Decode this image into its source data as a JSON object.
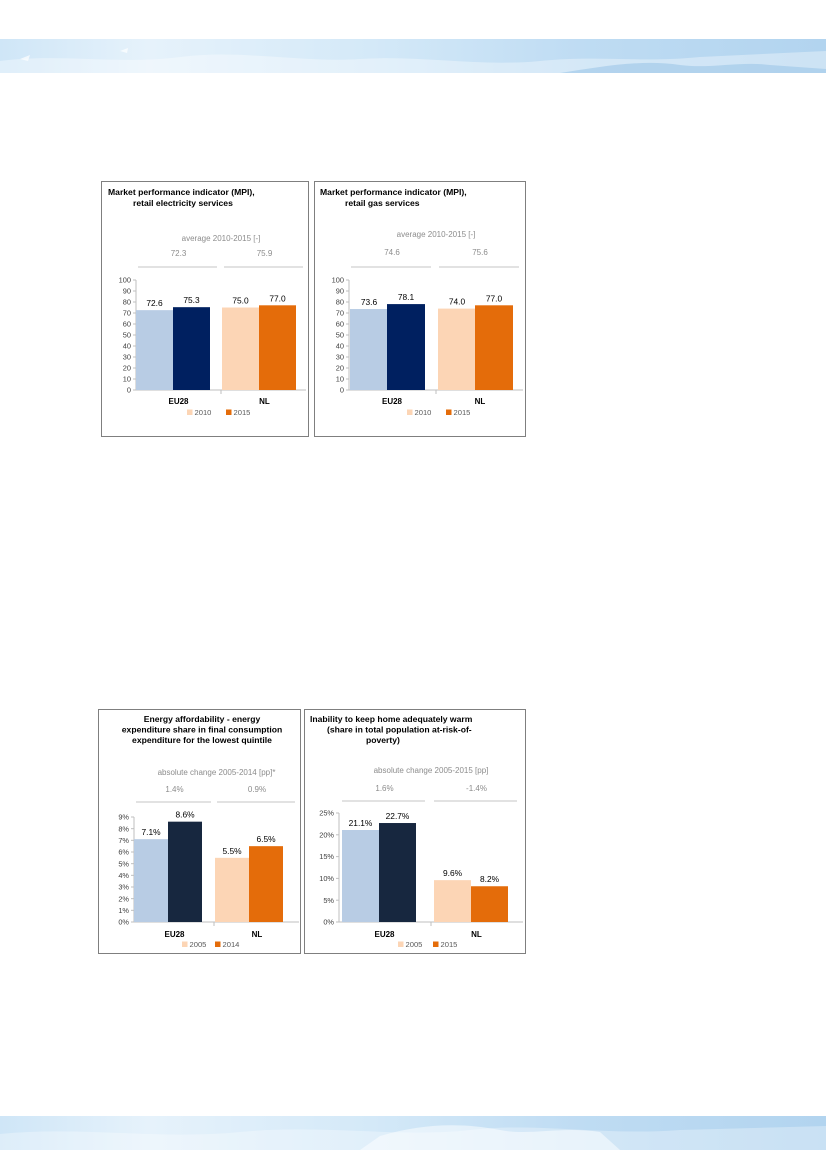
{
  "colors": {
    "eu_old": "#b8cce4",
    "eu_new": "#002060",
    "eu_new_dark": "#17273f",
    "nl_old": "#fcd5b5",
    "nl_new": "#e46c0a",
    "avg_line": "#d9d9d9",
    "panel_border": "#7f7f7f"
  },
  "chart_data": [
    {
      "id": "mpi-electricity",
      "type": "bar",
      "title": [
        "Market performance indicator (MPI),",
        "retail electricity services"
      ],
      "subtitle": "average 2010-2015 [-]",
      "group_values": [
        "72.3",
        "75.9"
      ],
      "categories": [
        "EU28",
        "NL"
      ],
      "series": [
        {
          "name": "2010",
          "values": [
            72.6,
            75.0
          ]
        },
        {
          "name": "2015",
          "values": [
            75.3,
            77.0
          ]
        }
      ],
      "data_labels": [
        [
          "72.6",
          "75.3"
        ],
        [
          "75.0",
          "77.0"
        ]
      ],
      "ylim": [
        0,
        100
      ],
      "yticks": [
        0,
        10,
        20,
        30,
        40,
        50,
        60,
        70,
        80,
        90,
        100
      ],
      "ytick_labels": [
        "0",
        "10",
        "20",
        "30",
        "40",
        "50",
        "60",
        "70",
        "80",
        "90",
        "100"
      ],
      "legend": [
        "2010",
        "2015"
      ],
      "legend_position": "bottom",
      "grid": false
    },
    {
      "id": "mpi-gas",
      "type": "bar",
      "title": [
        "Market performance indicator (MPI),",
        "retail gas services"
      ],
      "subtitle": "average 2010-2015 [-]",
      "group_values": [
        "74.6",
        "75.6"
      ],
      "categories": [
        "EU28",
        "NL"
      ],
      "series": [
        {
          "name": "2010",
          "values": [
            73.6,
            74.0
          ]
        },
        {
          "name": "2015",
          "values": [
            78.1,
            77.0
          ]
        }
      ],
      "data_labels": [
        [
          "73.6",
          "78.1"
        ],
        [
          "74.0",
          "77.0"
        ]
      ],
      "ylim": [
        0,
        100
      ],
      "yticks": [
        0,
        10,
        20,
        30,
        40,
        50,
        60,
        70,
        80,
        90,
        100
      ],
      "ytick_labels": [
        "0",
        "10",
        "20",
        "30",
        "40",
        "50",
        "60",
        "70",
        "80",
        "90",
        "100"
      ],
      "legend": [
        "2010",
        "2015"
      ],
      "legend_position": "bottom",
      "grid": false
    },
    {
      "id": "energy-affordability",
      "type": "bar",
      "title": [
        "Energy affordability - energy",
        "expenditure share in final consumption",
        "expenditure for the lowest quintile"
      ],
      "subtitle": "absolute change 2005-2014 [pp]*",
      "group_values": [
        "1.4%",
        "0.9%"
      ],
      "categories": [
        "EU28",
        "NL"
      ],
      "series": [
        {
          "name": "2005",
          "values": [
            7.1,
            5.5
          ]
        },
        {
          "name": "2014",
          "values": [
            8.6,
            6.5
          ]
        }
      ],
      "data_labels": [
        [
          "7.1%",
          "8.6%"
        ],
        [
          "5.5%",
          "6.5%"
        ]
      ],
      "ylim": [
        0,
        9
      ],
      "yticks": [
        0,
        1,
        2,
        3,
        4,
        5,
        6,
        7,
        8,
        9
      ],
      "ytick_labels": [
        "0%",
        "1%",
        "2%",
        "3%",
        "4%",
        "5%",
        "6%",
        "7%",
        "8%",
        "9%"
      ],
      "legend": [
        "2005",
        "2014"
      ],
      "legend_position": "bottom",
      "grid": false
    },
    {
      "id": "home-warm",
      "type": "bar",
      "title": [
        "Inability to keep home adequately warm",
        "(share in total population at-risk-of-",
        "poverty)"
      ],
      "subtitle": "absolute change 2005-2015 [pp]",
      "group_values": [
        "1.6%",
        "-1.4%"
      ],
      "categories": [
        "EU28",
        "NL"
      ],
      "series": [
        {
          "name": "2005",
          "values": [
            21.1,
            9.6
          ]
        },
        {
          "name": "2015",
          "values": [
            22.7,
            8.2
          ]
        }
      ],
      "data_labels": [
        [
          "21.1%",
          "22.7%"
        ],
        [
          "9.6%",
          "8.2%"
        ]
      ],
      "ylim": [
        0,
        25
      ],
      "yticks": [
        0,
        5,
        10,
        15,
        20,
        25
      ],
      "ytick_labels": [
        "0%",
        "5%",
        "10%",
        "15%",
        "20%",
        "25%"
      ],
      "legend": [
        "2005",
        "2015"
      ],
      "legend_position": "bottom",
      "grid": false
    }
  ]
}
